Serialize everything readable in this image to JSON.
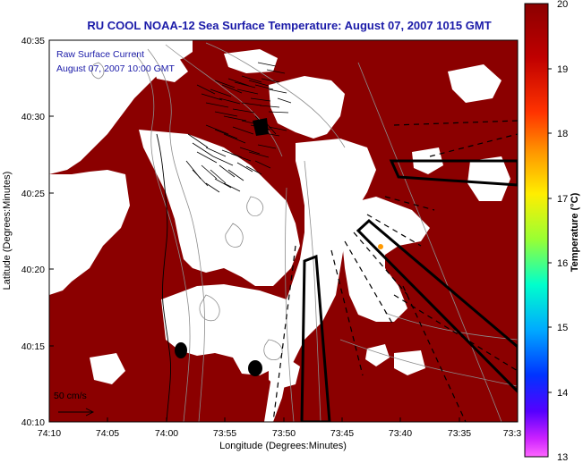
{
  "title": "RU COOL  NOAA-12  Sea Surface Temperature:  August 07, 2007 1015 GMT",
  "inset": {
    "line1": "Raw Surface Current",
    "line2": "August 07, 2007 10:00 GMT"
  },
  "scale_label": "50 cm/s",
  "x_axis": {
    "label": "Longitude (Degrees:Minutes)",
    "ticks": [
      "74:10",
      "74:05",
      "74:00",
      "73:55",
      "73:50",
      "73:45",
      "73:40",
      "73:35",
      "73:3"
    ]
  },
  "y_axis": {
    "label": "Latitude (Degrees:Minutes)",
    "ticks": [
      "40:35",
      "40:30",
      "40:25",
      "40:20",
      "40:15",
      "40:10"
    ]
  },
  "colorbar": {
    "label": "Temperature (°C)",
    "ticks": [
      "20",
      "19",
      "18",
      "17",
      "16",
      "15",
      "14",
      "13"
    ],
    "min": 13,
    "max": 20
  },
  "colors": {
    "land_sst": "#8b0000",
    "title": "#1a1aa8",
    "contour": "#8c8c8c"
  }
}
